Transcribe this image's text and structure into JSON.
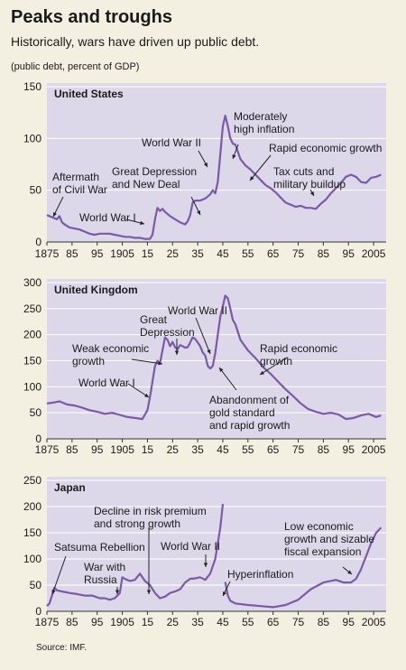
{
  "header": {
    "title": "Peaks and troughs",
    "subtitle": "Historically, wars have driven up public debt.",
    "unit": "(public debt, percent of GDP)"
  },
  "source": "Source: IMF.",
  "colors": {
    "panel": "#dcd8ea",
    "line": "#7a5aa6",
    "page": "#f3f0e2"
  },
  "chart_data": [
    {
      "type": "line",
      "title": "United States",
      "xticks": [
        "1875",
        "85",
        "95",
        "1905",
        "15",
        "25",
        "35",
        "45",
        "55",
        "65",
        "75",
        "85",
        "95",
        "2005"
      ],
      "yticks": [
        "0",
        "50",
        "100",
        "150"
      ],
      "xlim": [
        1875,
        2010
      ],
      "ylim": [
        0,
        150
      ],
      "x": [
        1875,
        1877,
        1879,
        1880,
        1881,
        1882,
        1884,
        1886,
        1888,
        1890,
        1892,
        1894,
        1896,
        1898,
        1900,
        1902,
        1904,
        1906,
        1908,
        1910,
        1912,
        1914,
        1916,
        1917,
        1918,
        1919,
        1920,
        1921,
        1922,
        1924,
        1926,
        1928,
        1929,
        1930,
        1931,
        1932,
        1933,
        1934,
        1936,
        1938,
        1940,
        1941,
        1942,
        1943,
        1944,
        1945,
        1946,
        1947,
        1948,
        1949,
        1950,
        1952,
        1954,
        1956,
        1958,
        1960,
        1962,
        1964,
        1966,
        1968,
        1970,
        1972,
        1974,
        1976,
        1978,
        1980,
        1982,
        1984,
        1986,
        1988,
        1990,
        1992,
        1994,
        1996,
        1998,
        2000,
        2002,
        2004,
        2006,
        2008
      ],
      "values": [
        26,
        24,
        22,
        25,
        19,
        17,
        14,
        13,
        12,
        10,
        8,
        7,
        8,
        8,
        8,
        7,
        6,
        5,
        5,
        4,
        4,
        3,
        3,
        7,
        22,
        33,
        30,
        32,
        29,
        25,
        22,
        19,
        18,
        17,
        20,
        26,
        38,
        40,
        40,
        42,
        46,
        50,
        47,
        58,
        85,
        112,
        122,
        112,
        100,
        95,
        94,
        80,
        74,
        70,
        65,
        60,
        55,
        52,
        48,
        43,
        38,
        36,
        34,
        35,
        33,
        33,
        32,
        37,
        41,
        47,
        52,
        57,
        63,
        65,
        63,
        58,
        57,
        62,
        63,
        65
      ],
      "annotations": [
        {
          "lines": [
            "Aftermath",
            "of Civil War"
          ]
        },
        {
          "lines": [
            "World War I"
          ]
        },
        {
          "lines": [
            "Great Depression",
            "and New Deal"
          ]
        },
        {
          "lines": [
            "World War II"
          ]
        },
        {
          "lines": [
            "Moderately",
            "high inflation"
          ]
        },
        {
          "lines": [
            "Rapid economic growth"
          ]
        },
        {
          "lines": [
            "Tax cuts and",
            "military buildup"
          ]
        }
      ]
    },
    {
      "type": "line",
      "title": "United Kingdom",
      "xticks": [
        "1875",
        "85",
        "95",
        "1905",
        "15",
        "25",
        "35",
        "45",
        "55",
        "65",
        "75",
        "85",
        "95",
        "2005"
      ],
      "yticks": [
        "0",
        "50",
        "100",
        "150",
        "200",
        "250",
        "300"
      ],
      "xlim": [
        1875,
        2010
      ],
      "ylim": [
        0,
        300
      ],
      "x": [
        1875,
        1878,
        1880,
        1883,
        1886,
        1889,
        1892,
        1895,
        1898,
        1901,
        1904,
        1907,
        1910,
        1913,
        1915,
        1916,
        1917,
        1918,
        1919,
        1920,
        1921,
        1922,
        1923,
        1924,
        1925,
        1926,
        1927,
        1928,
        1929,
        1930,
        1931,
        1932,
        1933,
        1934,
        1935,
        1936,
        1937,
        1938,
        1939,
        1940,
        1941,
        1942,
        1943,
        1944,
        1945,
        1946,
        1947,
        1948,
        1949,
        1950,
        1952,
        1955,
        1958,
        1961,
        1964,
        1967,
        1970,
        1973,
        1976,
        1979,
        1982,
        1985,
        1988,
        1991,
        1994,
        1997,
        2000,
        2003,
        2006,
        2008
      ],
      "values": [
        68,
        70,
        72,
        66,
        64,
        60,
        55,
        52,
        48,
        50,
        46,
        42,
        40,
        38,
        55,
        80,
        110,
        140,
        150,
        145,
        170,
        195,
        190,
        178,
        186,
        176,
        172,
        180,
        178,
        175,
        176,
        185,
        195,
        192,
        185,
        178,
        166,
        160,
        140,
        135,
        140,
        165,
        200,
        235,
        255,
        275,
        270,
        250,
        228,
        220,
        190,
        170,
        155,
        138,
        125,
        110,
        95,
        82,
        68,
        57,
        52,
        48,
        50,
        47,
        38,
        40,
        45,
        48,
        42,
        45
      ],
      "annotations": [
        {
          "lines": [
            "World War II"
          ]
        },
        {
          "lines": [
            "Great",
            "Depression"
          ]
        },
        {
          "lines": [
            "Weak economic",
            "growth"
          ]
        },
        {
          "lines": [
            "World War I"
          ]
        },
        {
          "lines": [
            "Rapid economic",
            "growth"
          ]
        },
        {
          "lines": [
            "Abandonment of",
            "gold standard",
            "and rapid growth"
          ]
        }
      ]
    },
    {
      "type": "line",
      "title": "Japan",
      "xticks": [
        "1875",
        "85",
        "95",
        "1905",
        "15",
        "25",
        "35",
        "45",
        "55",
        "65",
        "75",
        "85",
        "95",
        "2005"
      ],
      "yticks": [
        "0",
        "50",
        "100",
        "150",
        "200",
        "250"
      ],
      "xlim": [
        1875,
        2010
      ],
      "ylim": [
        0,
        250
      ],
      "x": [
        1875,
        1876,
        1877,
        1878,
        1879,
        1881,
        1884,
        1887,
        1890,
        1893,
        1896,
        1898,
        1900,
        1902,
        1904,
        1905,
        1906,
        1908,
        1910,
        1912,
        1914,
        1916,
        1918,
        1920,
        1922,
        1924,
        1926,
        1928,
        1930,
        1932,
        1934,
        1936,
        1938,
        1940,
        1942,
        1943,
        1944,
        1945,
        null,
        1946,
        1947,
        1948,
        1950,
        1955,
        1960,
        1965,
        1970,
        1975,
        1980,
        1985,
        1990,
        1993,
        1996,
        1998,
        2000,
        2002,
        2004,
        2006,
        2008
      ],
      "values": [
        10,
        15,
        30,
        45,
        40,
        38,
        35,
        33,
        30,
        30,
        25,
        25,
        22,
        25,
        35,
        65,
        62,
        58,
        60,
        72,
        58,
        50,
        35,
        25,
        28,
        35,
        38,
        42,
        55,
        62,
        63,
        65,
        60,
        72,
        100,
        130,
        160,
        205,
        null,
        56,
        30,
        20,
        15,
        12,
        10,
        8,
        12,
        22,
        42,
        55,
        60,
        55,
        55,
        62,
        80,
        105,
        130,
        150,
        160
      ],
      "annotations": [
        {
          "lines": [
            "Decline in risk premium",
            "and strong growth"
          ]
        },
        {
          "lines": [
            "Satsuma Rebellion"
          ]
        },
        {
          "lines": [
            "World War II"
          ]
        },
        {
          "lines": [
            "War with",
            "Russia"
          ]
        },
        {
          "lines": [
            "Hyperinflation"
          ]
        },
        {
          "lines": [
            "Low economic",
            "growth and sizable",
            "fiscal expansion"
          ]
        }
      ]
    }
  ]
}
